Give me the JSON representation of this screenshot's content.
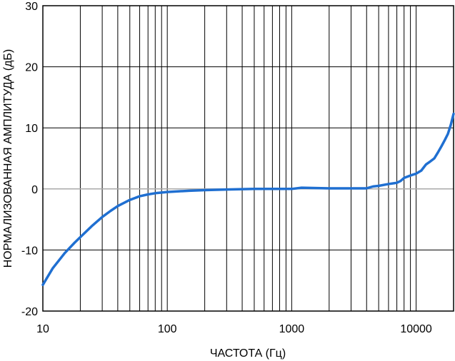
{
  "chart_data": {
    "type": "line",
    "title": "",
    "xlabel": "ЧАСТОТА (Гц)",
    "ylabel": "НОРМАЛИЗОВАННАЯ АМПЛИТУДА (дБ)",
    "x_scale": "log",
    "xlim": [
      10,
      20000
    ],
    "ylim": [
      -20,
      30
    ],
    "grid": true,
    "x_ticks": [
      10,
      100,
      1000,
      10000
    ],
    "x_tick_labels": [
      "10",
      "100",
      "1000",
      "10000"
    ],
    "y_ticks": [
      30,
      20,
      10,
      0,
      -10,
      -20
    ],
    "y_tick_labels": [
      "30",
      "20",
      "10",
      "0",
      "-10",
      "-20"
    ],
    "series": [
      {
        "color": "#1f6fd1",
        "x": [
          10,
          12,
          15,
          18,
          20,
          25,
          30,
          35,
          40,
          50,
          60,
          70,
          80,
          100,
          150,
          200,
          300,
          500,
          1000,
          1200,
          2000,
          3000,
          4000,
          4500,
          5000,
          6000,
          7000,
          7500,
          8000,
          9000,
          10000,
          11000,
          12000,
          13000,
          14000,
          15000,
          16000,
          17000,
          18000,
          19000,
          20000
        ],
        "y": [
          -15.7,
          -13.0,
          -10.5,
          -8.8,
          -7.9,
          -6.0,
          -4.6,
          -3.6,
          -2.8,
          -1.8,
          -1.2,
          -0.9,
          -0.7,
          -0.5,
          -0.3,
          -0.2,
          -0.1,
          0.0,
          0.0,
          0.2,
          0.1,
          0.1,
          0.1,
          0.4,
          0.5,
          0.8,
          1.0,
          1.3,
          1.8,
          2.2,
          2.5,
          3.0,
          4.0,
          4.5,
          5.0,
          6.0,
          7.0,
          8.0,
          9.0,
          10.5,
          12.3
        ]
      }
    ]
  }
}
